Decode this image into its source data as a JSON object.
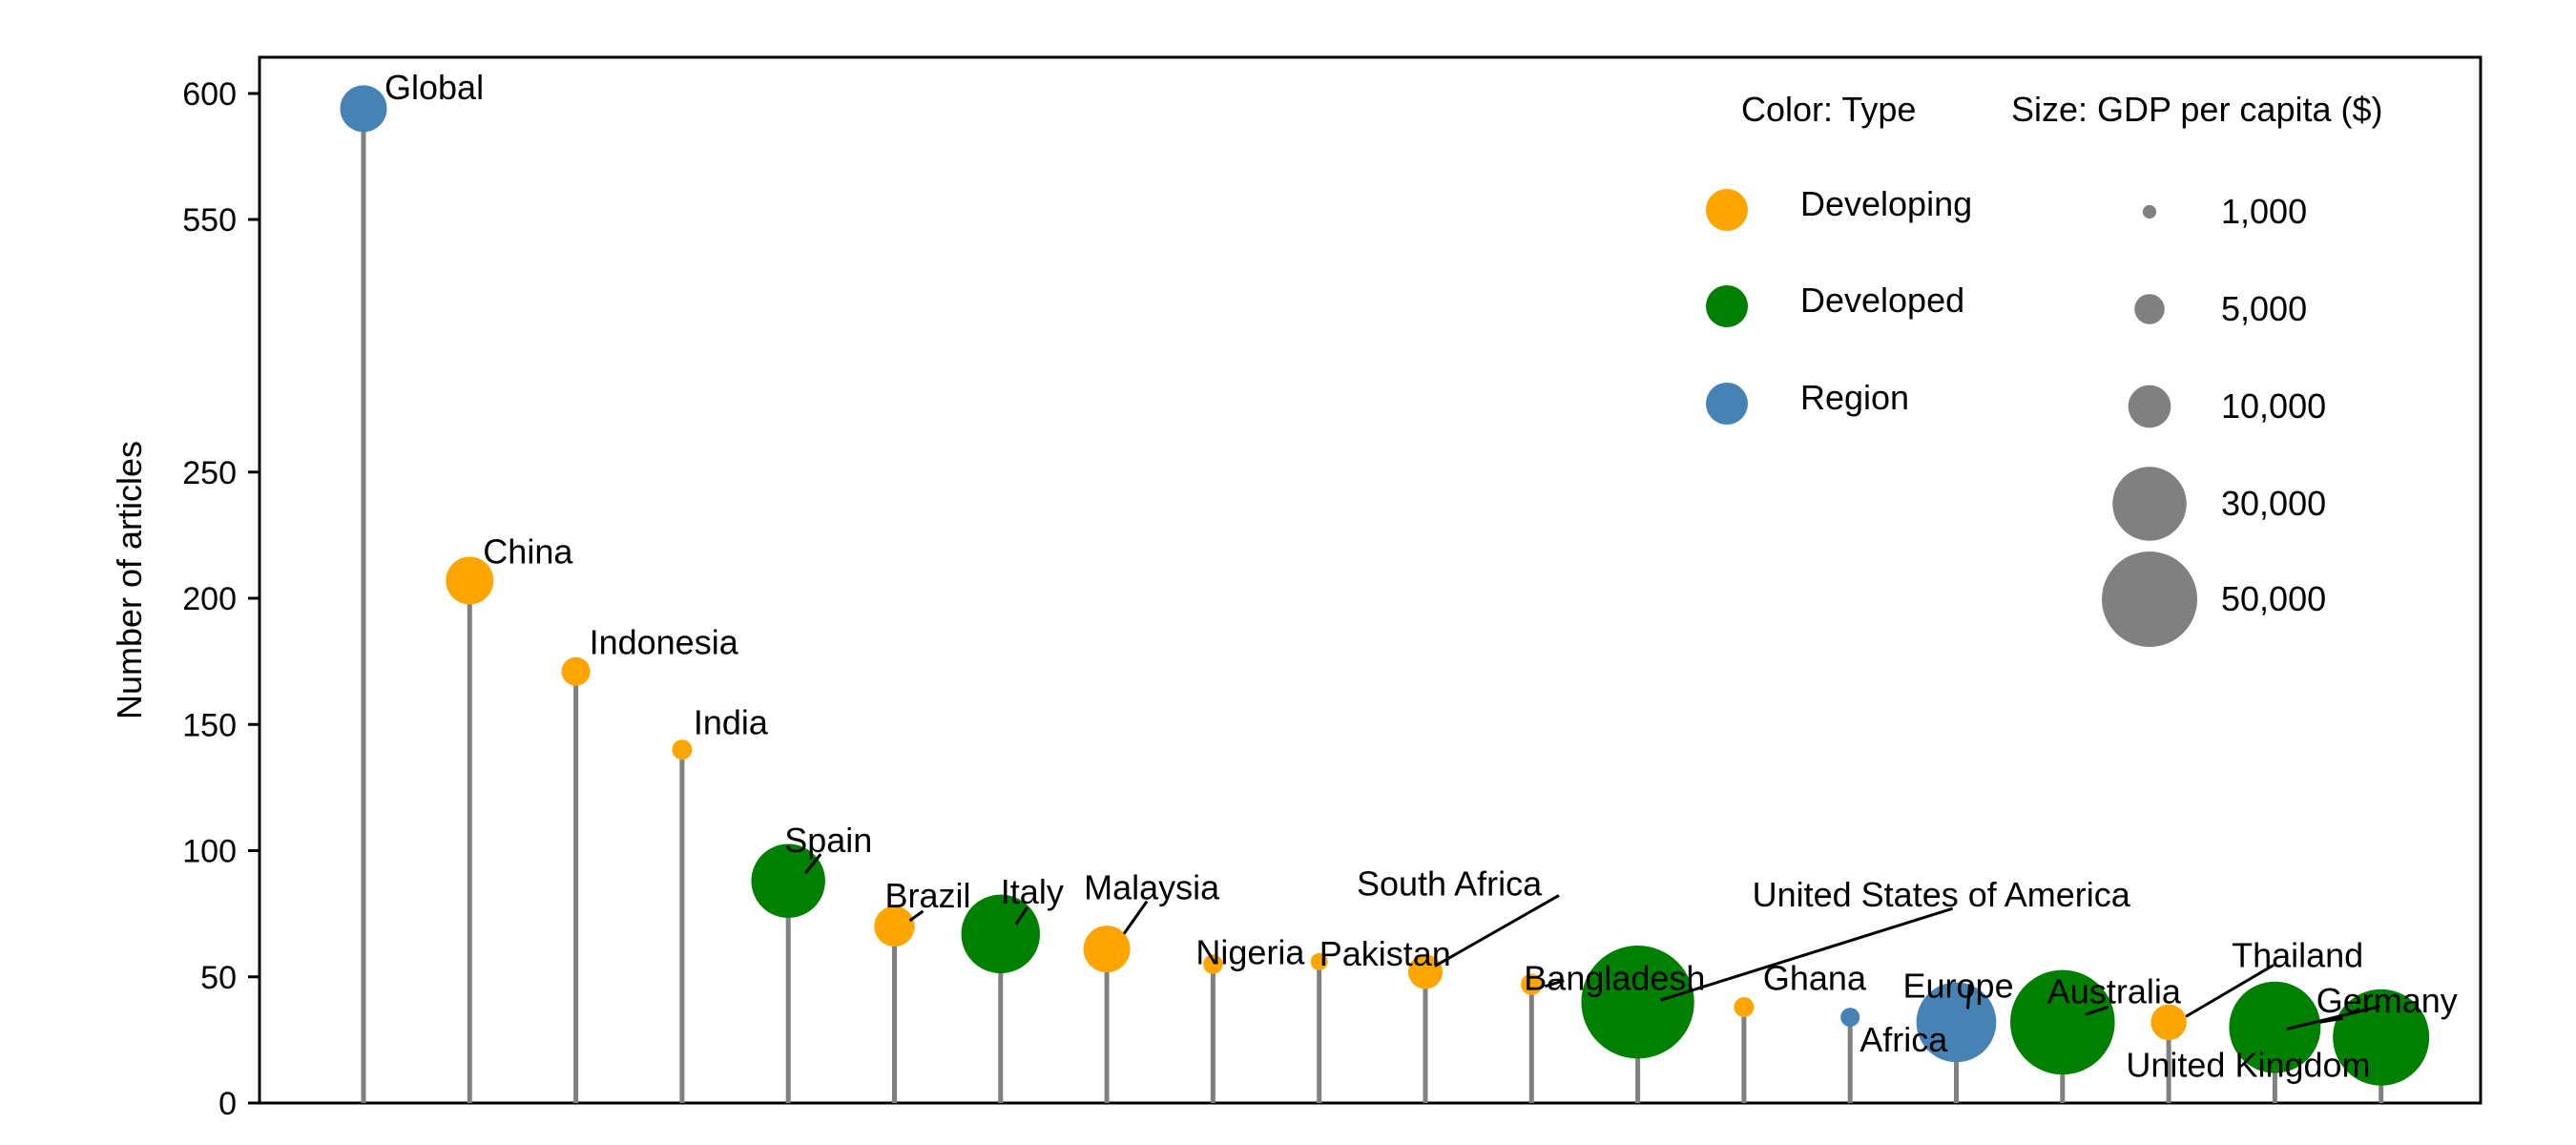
{
  "chart_data": {
    "type": "scatter",
    "subtype": "lollipop",
    "ylabel": "Number of articles",
    "y_axis": {
      "broken": true,
      "ticks": [
        0,
        50,
        100,
        150,
        200,
        250,
        550,
        600
      ]
    },
    "grid": false,
    "legend": {
      "placement": "top-right",
      "color_title": "Color: Type",
      "size_title": "Size: GDP per capita ($)",
      "color_entries": [
        {
          "label": "Developing",
          "color": "#FFA500"
        },
        {
          "label": "Developed",
          "color": "#008000"
        },
        {
          "label": "Region",
          "color": "#4682B4"
        }
      ],
      "size_entries": [
        {
          "label": "1,000",
          "value": 1000
        },
        {
          "label": "5,000",
          "value": 5000
        },
        {
          "label": "10,000",
          "value": 10000
        },
        {
          "label": "30,000",
          "value": 30000
        },
        {
          "label": "50,000",
          "value": 50000
        }
      ]
    },
    "stem_color": "#808080",
    "points": [
      {
        "name": "Global",
        "articles": 594,
        "type": "Region",
        "gdp": 12000
      },
      {
        "name": "China",
        "articles": 207,
        "type": "Developing",
        "gdp": 12500
      },
      {
        "name": "Indonesia",
        "articles": 171,
        "type": "Developing",
        "gdp": 4500
      },
      {
        "name": "India",
        "articles": 140,
        "type": "Developing",
        "gdp": 2200
      },
      {
        "name": "Spain",
        "articles": 88,
        "type": "Developed",
        "gdp": 30000
      },
      {
        "name": "Brazil",
        "articles": 70,
        "type": "Developing",
        "gdp": 9000
      },
      {
        "name": "Italy",
        "articles": 67,
        "type": "Developed",
        "gdp": 34000
      },
      {
        "name": "Malaysia",
        "articles": 61,
        "type": "Developing",
        "gdp": 12000
      },
      {
        "name": "Nigeria",
        "articles": 55,
        "type": "Developing",
        "gdp": 2100
      },
      {
        "name": "Pakistan",
        "articles": 56,
        "type": "Developing",
        "gdp": 1600
      },
      {
        "name": "South Africa",
        "articles": 52,
        "type": "Developing",
        "gdp": 6500
      },
      {
        "name": "Bangladesh",
        "articles": 47,
        "type": "Developing",
        "gdp": 2500
      },
      {
        "name": "United States of America",
        "articles": 40,
        "type": "Developed",
        "gdp": 70000
      },
      {
        "name": "Ghana",
        "articles": 38,
        "type": "Developing",
        "gdp": 2200
      },
      {
        "name": "Africa",
        "articles": 34,
        "type": "Region",
        "gdp": 2000
      },
      {
        "name": "Europe",
        "articles": 32,
        "type": "Region",
        "gdp": 35000
      },
      {
        "name": "Australia",
        "articles": 32,
        "type": "Developed",
        "gdp": 60000
      },
      {
        "name": "Thailand",
        "articles": 32,
        "type": "Developing",
        "gdp": 7000
      },
      {
        "name": "United Kingdom",
        "articles": 30,
        "type": "Developed",
        "gdp": 46000
      },
      {
        "name": "Germany",
        "articles": 26,
        "type": "Developed",
        "gdp": 51000
      }
    ]
  }
}
